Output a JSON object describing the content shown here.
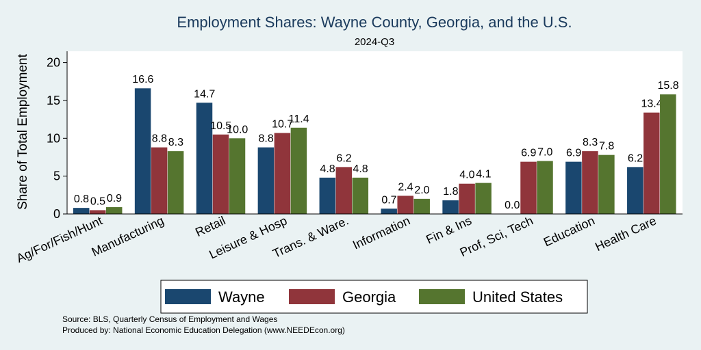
{
  "chart_data": {
    "type": "bar",
    "title": "Employment Shares: Wayne County, Georgia, and the U.S.",
    "subtitle": "2024-Q3",
    "ylabel": "Share of Total Employment",
    "xlabel": "",
    "ylim": [
      0,
      21.5
    ],
    "yticks": [
      "0",
      "5",
      "10",
      "15",
      "20"
    ],
    "categories": [
      "Ag/For/Fish/Hunt",
      "Manufacturing",
      "Retail",
      "Leisure & Hosp",
      "Trans. & Ware.",
      "Information",
      "Fin & Ins",
      "Prof, Sci, Tech",
      "Education",
      "Health Care"
    ],
    "series": [
      {
        "name": "Wayne",
        "color": "#1a476f",
        "values": [
          0.8,
          16.6,
          14.7,
          8.8,
          4.8,
          0.7,
          1.8,
          0.0,
          6.9,
          6.2
        ],
        "labels": [
          "0.8",
          "16.6",
          "14.7",
          "8.8",
          "4.8",
          "0.7",
          "1.8",
          "0.0",
          "6.9",
          "6.2"
        ]
      },
      {
        "name": "Georgia",
        "color": "#90353b",
        "values": [
          0.5,
          8.8,
          10.5,
          10.7,
          6.2,
          2.4,
          4.0,
          6.9,
          8.3,
          13.4
        ],
        "labels": [
          "0.5",
          "8.8",
          "10.5",
          "10.7",
          "6.2",
          "2.4",
          "4.0",
          "6.9",
          "8.3",
          "13.4"
        ]
      },
      {
        "name": "United States",
        "color": "#55752f",
        "values": [
          0.9,
          8.3,
          10.0,
          11.4,
          4.8,
          2.0,
          4.1,
          7.0,
          7.8,
          15.8
        ],
        "labels": [
          "0.9",
          "8.3",
          "10.0",
          "11.4",
          "4.8",
          "2.0",
          "4.1",
          "7.0",
          "7.8",
          "15.8"
        ]
      }
    ],
    "grid": false,
    "legend_position": "bottom",
    "notes": [
      "Source: BLS, Quarterly Census of Employment and Wages",
      "Produced by: National Economic Education Delegation (www.NEEDEcon.org)"
    ]
  }
}
